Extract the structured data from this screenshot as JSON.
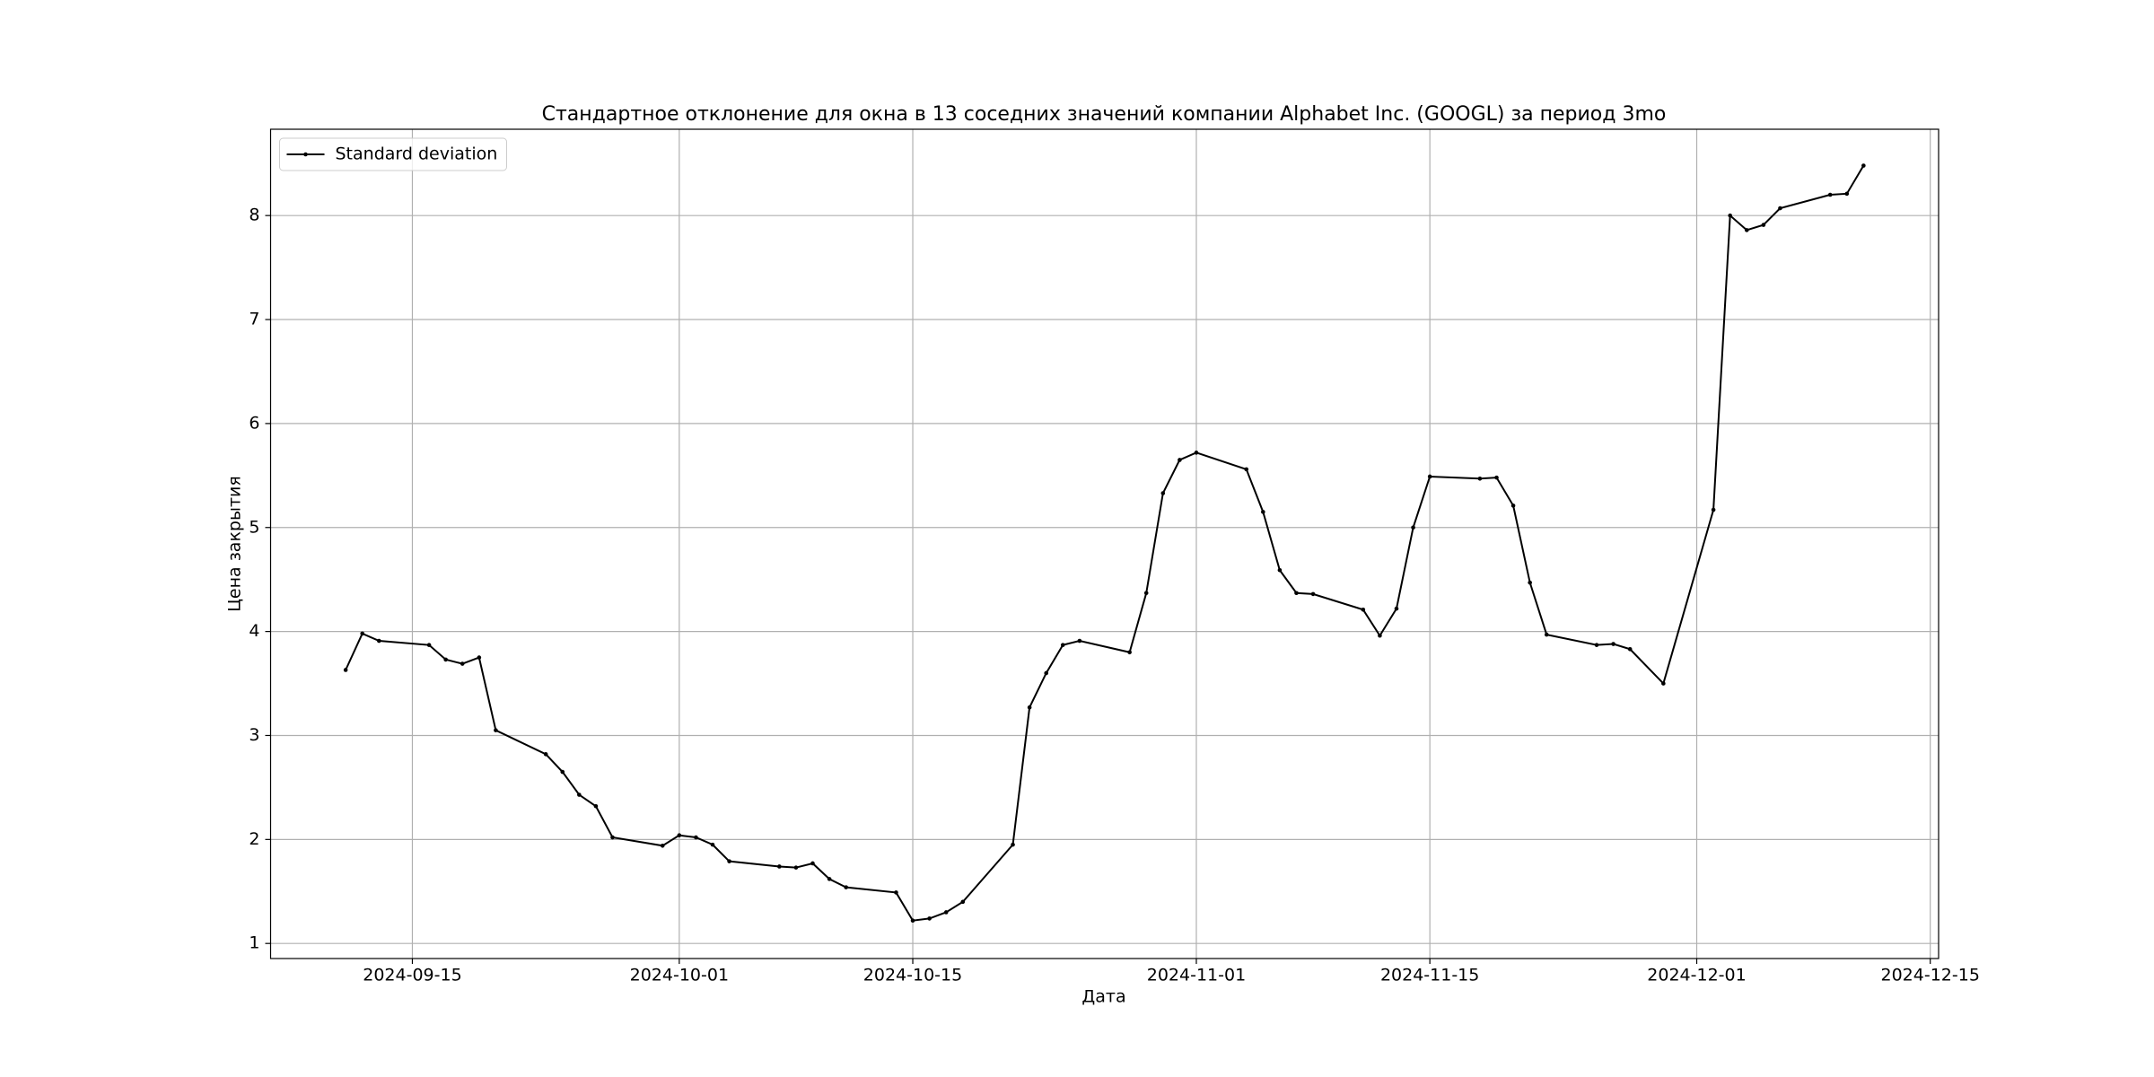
{
  "chart_data": {
    "type": "line",
    "title": "Стандартное отклонение для окна в 13 соседних значений компании Alphabet Inc. (GOOGL) за период 3mo",
    "x_label": "Дата",
    "y_label": "Цена закрытия",
    "x": [
      "2024-09-11",
      "2024-09-12",
      "2024-09-13",
      "2024-09-16",
      "2024-09-17",
      "2024-09-18",
      "2024-09-19",
      "2024-09-20",
      "2024-09-23",
      "2024-09-24",
      "2024-09-25",
      "2024-09-26",
      "2024-09-27",
      "2024-09-30",
      "2024-10-01",
      "2024-10-02",
      "2024-10-03",
      "2024-10-04",
      "2024-10-07",
      "2024-10-08",
      "2024-10-09",
      "2024-10-10",
      "2024-10-11",
      "2024-10-14",
      "2024-10-15",
      "2024-10-16",
      "2024-10-17",
      "2024-10-18",
      "2024-10-21",
      "2024-10-22",
      "2024-10-23",
      "2024-10-24",
      "2024-10-25",
      "2024-10-28",
      "2024-10-29",
      "2024-10-30",
      "2024-10-31",
      "2024-11-01",
      "2024-11-04",
      "2024-11-05",
      "2024-11-06",
      "2024-11-07",
      "2024-11-08",
      "2024-11-11",
      "2024-11-12",
      "2024-11-13",
      "2024-11-14",
      "2024-11-15",
      "2024-11-18",
      "2024-11-19",
      "2024-11-20",
      "2024-11-21",
      "2024-11-22",
      "2024-11-25",
      "2024-11-26",
      "2024-11-27",
      "2024-11-29",
      "2024-12-02",
      "2024-12-03",
      "2024-12-04",
      "2024-12-05",
      "2024-12-06",
      "2024-12-09",
      "2024-12-10",
      "2024-12-11"
    ],
    "series": [
      {
        "name": "Standard deviation",
        "color": "#000000",
        "values": [
          3.63,
          3.98,
          3.91,
          3.87,
          3.73,
          3.69,
          3.75,
          3.05,
          2.82,
          2.65,
          2.43,
          2.32,
          2.02,
          1.94,
          2.04,
          2.02,
          1.95,
          1.79,
          1.74,
          1.73,
          1.77,
          1.62,
          1.54,
          1.49,
          1.22,
          1.24,
          1.3,
          1.4,
          1.95,
          3.27,
          3.6,
          3.87,
          3.91,
          3.8,
          4.37,
          5.33,
          5.65,
          5.72,
          5.56,
          5.15,
          4.59,
          4.37,
          4.36,
          4.21,
          3.96,
          4.22,
          5.0,
          5.49,
          5.47,
          5.48,
          5.21,
          4.47,
          3.97,
          3.87,
          3.88,
          3.83,
          3.5,
          5.17,
          8.0,
          7.86,
          7.91,
          8.07,
          8.2,
          8.21,
          8.48
        ]
      }
    ],
    "xlim": [
      "2024-09-06T12:00:00Z",
      "2024-12-15T12:00:00Z"
    ],
    "xticks": [
      "2024-09-15",
      "2024-10-01",
      "2024-10-15",
      "2024-11-01",
      "2024-11-15",
      "2024-12-01",
      "2024-12-15"
    ],
    "ylim": [
      0.855,
      8.83
    ],
    "yticks": [
      1,
      2,
      3,
      4,
      5,
      6,
      7,
      8
    ],
    "grid": true,
    "legend": "upper left"
  }
}
